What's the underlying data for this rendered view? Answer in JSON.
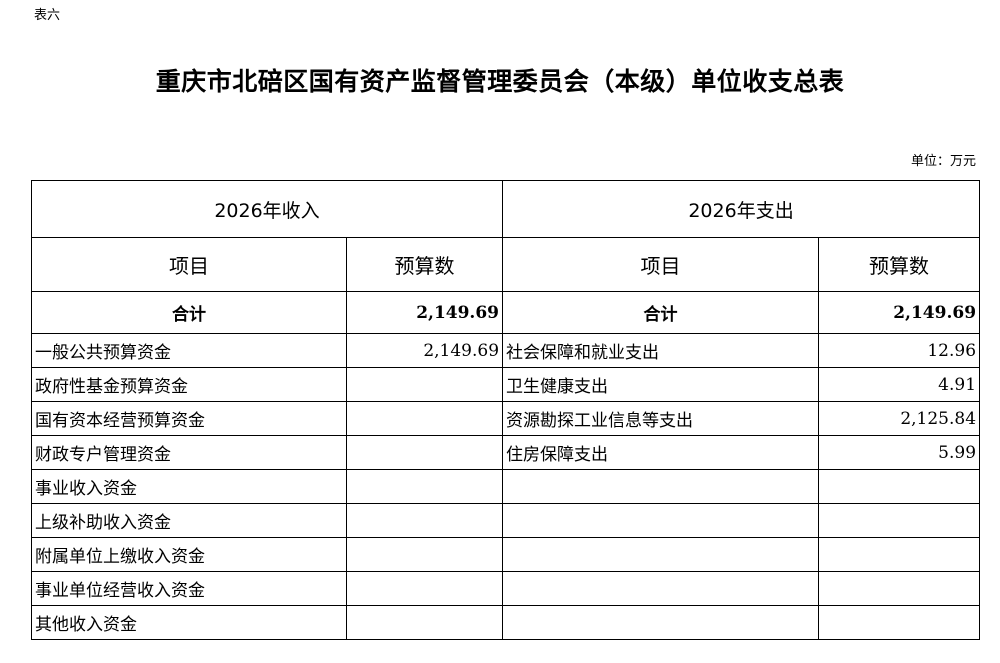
{
  "doc": {
    "tag": "表六",
    "title": "重庆市北碚区国有资产监督管理委员会（本级）单位收支总表",
    "unit": "单位：万元"
  },
  "table": {
    "income_header": "2026年收入",
    "expense_header": "2026年支出",
    "col_item": "项目",
    "col_amount": "预算数",
    "total_label": "合计",
    "income_total": "2,149.69",
    "expense_total": "2,149.69",
    "rows": [
      {
        "income_item": "一般公共预算资金",
        "income_amount": "2,149.69",
        "expense_item": "社会保障和就业支出",
        "expense_amount": "12.96"
      },
      {
        "income_item": "政府性基金预算资金",
        "income_amount": "",
        "expense_item": "卫生健康支出",
        "expense_amount": "4.91"
      },
      {
        "income_item": "国有资本经营预算资金",
        "income_amount": "",
        "expense_item": "资源勘探工业信息等支出",
        "expense_amount": "2,125.84"
      },
      {
        "income_item": "财政专户管理资金",
        "income_amount": "",
        "expense_item": "住房保障支出",
        "expense_amount": "5.99"
      },
      {
        "income_item": "事业收入资金",
        "income_amount": "",
        "expense_item": "",
        "expense_amount": ""
      },
      {
        "income_item": "上级补助收入资金",
        "income_amount": "",
        "expense_item": "",
        "expense_amount": ""
      },
      {
        "income_item": "附属单位上缴收入资金",
        "income_amount": "",
        "expense_item": "",
        "expense_amount": ""
      },
      {
        "income_item": "事业单位经营收入资金",
        "income_amount": "",
        "expense_item": "",
        "expense_amount": ""
      },
      {
        "income_item": "其他收入资金",
        "income_amount": "",
        "expense_item": "",
        "expense_amount": ""
      }
    ]
  }
}
